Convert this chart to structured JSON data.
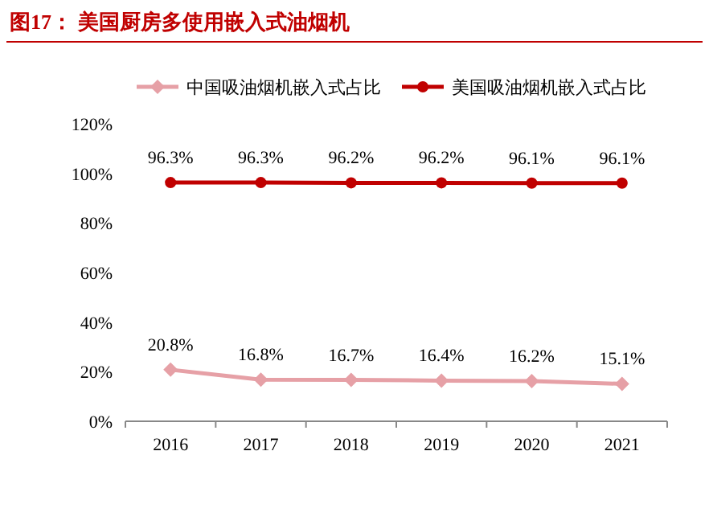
{
  "chart_data": {
    "type": "line",
    "title": "图17：  美国厨房多使用嵌入式油烟机",
    "categories": [
      "2016",
      "2017",
      "2018",
      "2019",
      "2020",
      "2021"
    ],
    "series": [
      {
        "name": "中国吸油烟机嵌入式占比",
        "color": "#e6a0a6",
        "marker": "diamond",
        "values": [
          20.8,
          16.8,
          16.7,
          16.4,
          16.2,
          15.1
        ],
        "value_labels": [
          "20.8%",
          "16.8%",
          "16.7%",
          "16.4%",
          "16.2%",
          "15.1%"
        ]
      },
      {
        "name": "美国吸油烟机嵌入式占比",
        "color": "#c00000",
        "marker": "circle",
        "values": [
          96.3,
          96.3,
          96.2,
          96.2,
          96.1,
          96.1
        ],
        "value_labels": [
          "96.3%",
          "96.3%",
          "96.2%",
          "96.2%",
          "96.1%",
          "96.1%"
        ]
      }
    ],
    "ylim": [
      0,
      120
    ],
    "yticks": [
      {
        "value": 0,
        "label": "0%"
      },
      {
        "value": 20,
        "label": "20%"
      },
      {
        "value": 40,
        "label": "40%"
      },
      {
        "value": 60,
        "label": "60%"
      },
      {
        "value": 80,
        "label": "80%"
      },
      {
        "value": 100,
        "label": "100%"
      },
      {
        "value": 120,
        "label": "120%"
      }
    ],
    "legend": "top",
    "grid": false,
    "line_style": "solid"
  }
}
